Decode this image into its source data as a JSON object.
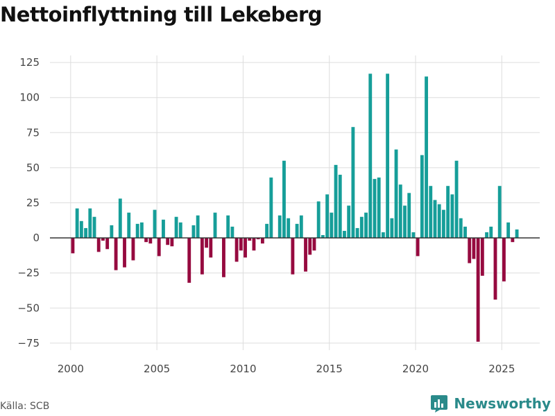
{
  "title": "Nettoinflyttning till Lekeberg",
  "source": "Källa: SCB",
  "brand": {
    "name": "Newsworthy",
    "color": "#2a8a8a"
  },
  "colors": {
    "positive": "#169e99",
    "negative": "#960a3f",
    "grid": "#dddddd",
    "zero": "#333333"
  },
  "chart_data": {
    "type": "bar",
    "title": "Nettoinflyttning till Lekeberg",
    "xlabel": "",
    "ylabel": "",
    "ylim": [
      -80,
      130
    ],
    "xlim": [
      1998.8,
      2027.2
    ],
    "yticks": [
      125,
      100,
      75,
      50,
      25,
      0,
      -25,
      -50,
      -75
    ],
    "ytick_labels": [
      "125",
      "100",
      "75",
      "50",
      "25",
      "0",
      "−25",
      "−50",
      "−75"
    ],
    "xticks": [
      2000,
      2005,
      2010,
      2015,
      2020,
      2025
    ],
    "xtick_labels": [
      "2000",
      "2005",
      "2010",
      "2015",
      "2020",
      "2025"
    ],
    "x_start": 2000.125,
    "x_step": 0.25,
    "period": "quarter",
    "values": [
      -11,
      21,
      12,
      7,
      21,
      15,
      -10,
      -2,
      -8,
      9,
      -23,
      28,
      -21,
      18,
      -16,
      10,
      11,
      -3,
      -4,
      20,
      -13,
      13,
      -5,
      -6,
      15,
      11,
      0,
      -32,
      9,
      16,
      -26,
      -7,
      -14,
      18,
      0,
      -28,
      16,
      8,
      -17,
      -9,
      -14,
      -2,
      -9,
      -1,
      -4,
      10,
      43,
      0,
      16,
      55,
      14,
      -26,
      10,
      16,
      -24,
      -12,
      -9,
      26,
      2,
      31,
      18,
      52,
      45,
      5,
      23,
      79,
      7,
      15,
      18,
      117,
      42,
      43,
      4,
      117,
      14,
      63,
      38,
      23,
      32,
      4,
      -13,
      59,
      115,
      37,
      27,
      24,
      20,
      37,
      31,
      55,
      14,
      8,
      -18,
      -15,
      -74,
      -27,
      4,
      8,
      -44,
      37,
      -31,
      11,
      -3,
      6
    ]
  }
}
